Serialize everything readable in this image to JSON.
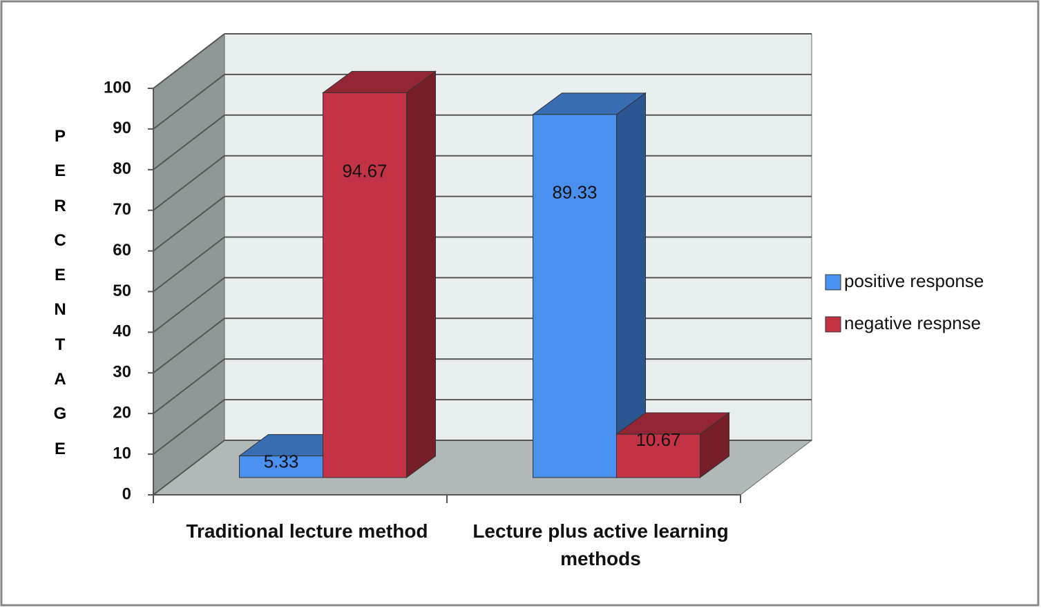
{
  "chart_data": {
    "type": "bar3d",
    "y_label": "PERCENTAGE",
    "categories": [
      "Traditional lecture method",
      "Lecture plus active learning methods"
    ],
    "series": [
      {
        "name": "positive response",
        "color": "#4a90ee",
        "values": [
          5.33,
          89.33
        ]
      },
      {
        "name": "negative respnse",
        "color": "#c43246",
        "values": [
          94.67,
          10.67
        ]
      }
    ],
    "ylim": [
      0,
      100
    ],
    "yticks": [
      0,
      10,
      20,
      30,
      40,
      50,
      60,
      70,
      80,
      90,
      100
    ],
    "grid": true,
    "legend": "right"
  }
}
